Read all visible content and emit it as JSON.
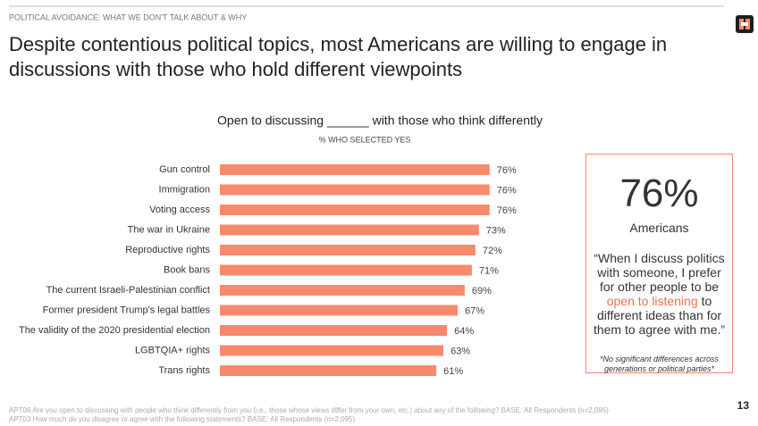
{
  "header": {
    "kicker": "POLITICAL AVOIDANCE: WHAT WE DON'T TALK ABOUT & WHY",
    "title_line1": "Despite contentious political topics, most Americans are willing to engage in",
    "title_line2": "discussions with those who hold different viewpoints"
  },
  "chart_data": {
    "type": "bar",
    "orientation": "horizontal",
    "title": "Open to discussing ______ with those who think differently",
    "subtitle": "% WHO SELECTED YES",
    "categories": [
      "Gun control",
      "Immigration",
      "Voting access",
      "The war in Ukraine",
      "Reproductive rights",
      "Book bans",
      "The current Israeli-Palestinian conflict",
      "Former president Trump's legal battles",
      "The validity of the 2020 presidential election",
      "LGBTQIA+ rights",
      "Trans rights"
    ],
    "values": [
      76,
      76,
      76,
      73,
      72,
      71,
      69,
      67,
      64,
      63,
      61
    ],
    "value_labels": [
      "76%",
      "76%",
      "76%",
      "73%",
      "72%",
      "71%",
      "69%",
      "67%",
      "64%",
      "63%",
      "61%"
    ],
    "color": "#f7896c",
    "grid": false
  },
  "callout": {
    "stat": "76%",
    "stat_label": "Americans",
    "quote_before": "“When I discuss politics with someone, I prefer for other people to be",
    "quote_highlight": "open to listening",
    "quote_after": "to different ideas than for them to agree with me.”",
    "note": "*No significant differences across generations or political parties*"
  },
  "footnotes": [
    "APT06 Are you open to discussing with people who think differently from you (i.e., those whose views differ from your own, etc.) about any of the following? BASE: All Respondents (n=2,095)",
    "APT03 How much do you disagree or agree with the following statements? BASE: All Respondents (n=2,095)"
  ],
  "page_number": "13"
}
